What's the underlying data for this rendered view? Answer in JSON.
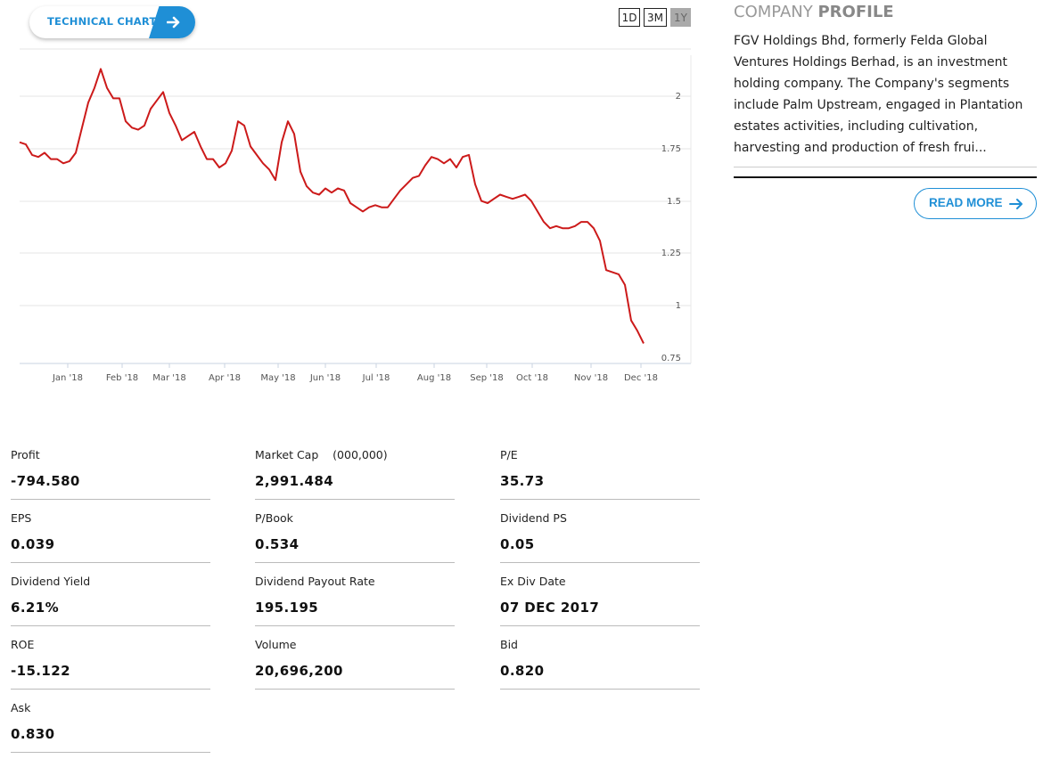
{
  "technical_chart": {
    "label": "TECHNICAL CHART",
    "icon": "arrow-right-icon"
  },
  "range_buttons": [
    {
      "label": "1D",
      "active": false
    },
    {
      "label": "3M",
      "active": false
    },
    {
      "label": "1Y",
      "active": true
    }
  ],
  "colors": {
    "accent": "#1f8fd6",
    "line": "#cc1a1a",
    "grid": "#e4e4e4"
  },
  "chart_data": {
    "type": "line",
    "x_ticks": [
      "Jan '18",
      "Feb '18",
      "Mar '18",
      "Apr '18",
      "May '18",
      "Jun '18",
      "Jul '18",
      "Aug '18",
      "Sep '18",
      "Oct '18",
      "Nov '18",
      "Dec '18"
    ],
    "y_ticks": [
      "2",
      "1.75",
      "1.5",
      "1.25",
      "1",
      "0.75"
    ],
    "ylim": [
      0.75,
      2.25
    ],
    "grid": true,
    "series": [
      {
        "values": [
          1.78,
          1.77,
          1.72,
          1.71,
          1.73,
          1.7,
          1.7,
          1.68,
          1.69,
          1.73,
          1.85,
          1.97,
          2.04,
          2.13,
          2.04,
          1.99,
          1.99,
          1.88,
          1.85,
          1.84,
          1.86,
          1.94,
          1.98,
          2.02,
          1.92,
          1.86,
          1.79,
          1.81,
          1.83,
          1.76,
          1.7,
          1.7,
          1.66,
          1.68,
          1.74,
          1.88,
          1.86,
          1.76,
          1.72,
          1.68,
          1.65,
          1.6,
          1.78,
          1.88,
          1.82,
          1.64,
          1.57,
          1.54,
          1.53,
          1.56,
          1.54,
          1.56,
          1.55,
          1.49,
          1.47,
          1.45,
          1.47,
          1.48,
          1.47,
          1.47,
          1.51,
          1.55,
          1.58,
          1.61,
          1.62,
          1.67,
          1.71,
          1.7,
          1.68,
          1.7,
          1.66,
          1.71,
          1.72,
          1.58,
          1.5,
          1.49,
          1.51,
          1.53,
          1.52,
          1.51,
          1.52,
          1.53,
          1.5,
          1.45,
          1.4,
          1.37,
          1.38,
          1.37,
          1.37,
          1.38,
          1.4,
          1.4,
          1.37,
          1.31,
          1.17,
          1.16,
          1.15,
          1.1,
          0.93,
          0.88,
          0.82
        ]
      }
    ]
  },
  "profile": {
    "title_light": "COMPANY",
    "title_bold": "PROFILE",
    "text": "FGV Holdings Bhd, formerly Felda Global Ventures Holdings Berhad, is an investment holding company. The Company's segments include Palm Upstream, engaged in Plantation estates activities, including cultivation, harvesting and production of fresh frui...",
    "read_more": "READ MORE"
  },
  "stats": [
    {
      "label": "Profit",
      "value": "-794.580"
    },
    {
      "label": "Market Cap    (000,000)",
      "value": "2,991.484"
    },
    {
      "label": "P/E",
      "value": "35.73"
    },
    {
      "label": "EPS",
      "value": "0.039"
    },
    {
      "label": "P/Book",
      "value": "0.534"
    },
    {
      "label": "Dividend PS",
      "value": "0.05"
    },
    {
      "label": "Dividend Yield",
      "value": "6.21%"
    },
    {
      "label": "Dividend Payout Rate",
      "value": "195.195"
    },
    {
      "label": "Ex Div Date",
      "value": "07 DEC 2017"
    },
    {
      "label": "ROE",
      "value": "-15.122"
    },
    {
      "label": "Volume",
      "value": "20,696,200"
    },
    {
      "label": "Bid",
      "value": "0.820"
    },
    {
      "label": "Ask",
      "value": "0.830"
    }
  ]
}
